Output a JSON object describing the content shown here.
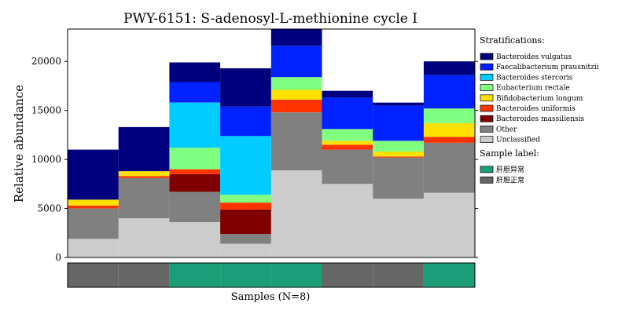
{
  "chart_data": {
    "type": "bar",
    "title": "PWY-6151: S-adenosyl-L-methionine cycle I",
    "ylabel": "Relative abundance",
    "xlabel": "Samples (N=8)",
    "ylim": [
      0,
      23300
    ],
    "yticks": [
      0,
      5000,
      10000,
      15000,
      20000
    ],
    "sample_count": 8,
    "series": [
      {
        "name": "Unclassified",
        "color": "#cccccc",
        "values": [
          1900,
          4000,
          3600,
          1400,
          8900,
          7500,
          6000,
          6600
        ]
      },
      {
        "name": "Other",
        "color": "#808080",
        "values": [
          3100,
          4100,
          3100,
          1000,
          5900,
          3500,
          4200,
          5100
        ]
      },
      {
        "name": "Bacteroides massiliensis",
        "color": "#800000",
        "values": [
          0,
          0,
          1800,
          2500,
          0,
          0,
          0,
          0
        ]
      },
      {
        "name": "Bacteroides uniformis",
        "color": "#ff3300",
        "values": [
          300,
          200,
          500,
          700,
          1300,
          500,
          100,
          600
        ]
      },
      {
        "name": "Bifidobacterium longum",
        "color": "#ffe000",
        "values": [
          600,
          500,
          0,
          0,
          1000,
          400,
          500,
          1400
        ]
      },
      {
        "name": "Eubacterium rectale",
        "color": "#80ff80",
        "values": [
          0,
          0,
          2200,
          800,
          1300,
          1200,
          1100,
          1500
        ]
      },
      {
        "name": "Bacteroides stercoris",
        "color": "#00ccff",
        "values": [
          0,
          0,
          4600,
          6000,
          0,
          0,
          0,
          0
        ]
      },
      {
        "name": "Faecalibacterium prausnitzii",
        "color": "#0022ff",
        "values": [
          0,
          0,
          2100,
          3000,
          3200,
          3200,
          3600,
          3400
        ]
      },
      {
        "name": "Bacteroides vulgatus",
        "color": "#00007f",
        "values": [
          5100,
          4500,
          2000,
          3900,
          1700,
          700,
          300,
          1400
        ]
      }
    ],
    "legend_order": [
      "Bacteroides vulgatus",
      "Faecalibacterium prausnitzii",
      "Bacteroides stercoris",
      "Eubacterium rectale",
      "Bifidobacterium longum",
      "Bacteroides uniformis",
      "Bacteroides massiliensis",
      "Other",
      "Unclassified"
    ],
    "legend_title": "Stratifications:",
    "legend_placement": "right",
    "sample_label_title": "Sample label:",
    "sample_labels": [
      {
        "name": "肝胆异常",
        "color": "#1b9e77"
      },
      {
        "name": "肝胆正常",
        "color": "#666666"
      }
    ],
    "sample_groups": [
      "肝胆正常",
      "肝胆正常",
      "肝胆异常",
      "肝胆异常",
      "肝胆异常",
      "肝胆正常",
      "肝胆正常",
      "肝胆异常"
    ],
    "grid": false
  }
}
